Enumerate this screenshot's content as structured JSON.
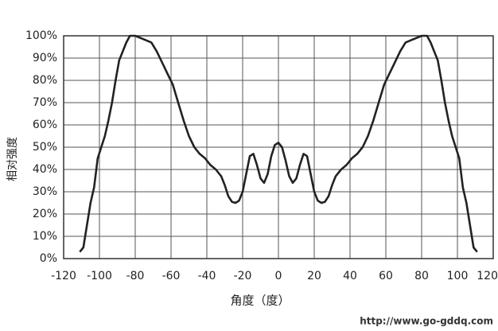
{
  "chart_data": {
    "type": "line",
    "x_label": "角度（度）",
    "y_label": "相对强度",
    "watermark": "http://www.go-gddq.com",
    "xlim": [
      -120,
      120
    ],
    "xticks": [
      -120,
      -100,
      -80,
      -60,
      -40,
      -20,
      0,
      20,
      40,
      60,
      80,
      100,
      120
    ],
    "ylim": [
      0,
      100
    ],
    "yticks": [
      {
        "value": 0,
        "label": "0%"
      },
      {
        "value": 10,
        "label": "10%"
      },
      {
        "value": 20,
        "label": "20%"
      },
      {
        "value": 30,
        "label": "30%"
      },
      {
        "value": 40,
        "label": "40%"
      },
      {
        "value": 50,
        "label": "50%"
      },
      {
        "value": 60,
        "label": "60%"
      },
      {
        "value": 70,
        "label": "70%"
      },
      {
        "value": 80,
        "label": "80%"
      },
      {
        "value": 90,
        "label": "90%"
      },
      {
        "value": 100,
        "label": "100%"
      }
    ],
    "grid": true,
    "color": "#222222",
    "x": [
      -111,
      -109,
      -107,
      -105,
      -103,
      -101,
      -99,
      -97,
      -95,
      -93,
      -91,
      -89,
      -87,
      -85,
      -83,
      -80,
      -77,
      -74,
      -71,
      -68,
      -65,
      -62,
      -59,
      -56,
      -53,
      -50,
      -47,
      -44,
      -41,
      -38,
      -35,
      -32,
      -30,
      -28,
      -26,
      -24,
      -22,
      -20,
      -18,
      -16,
      -14,
      -12,
      -10,
      -8,
      -6,
      -4,
      -2,
      0,
      2,
      4,
      6,
      8,
      10,
      12,
      14,
      16,
      18,
      20,
      22,
      24,
      26,
      28,
      30,
      32,
      35,
      38,
      41,
      44,
      47,
      50,
      53,
      56,
      59,
      62,
      65,
      68,
      71,
      74,
      77,
      80,
      83,
      85,
      87,
      89,
      91,
      93,
      95,
      97,
      99,
      101,
      103,
      105,
      107,
      109,
      111
    ],
    "values": [
      3,
      5,
      15,
      25,
      32,
      45,
      50,
      55,
      62,
      70,
      80,
      89,
      93,
      97,
      100,
      100,
      99,
      98,
      97,
      93,
      88,
      83,
      78,
      70,
      62,
      55,
      50,
      47,
      45,
      42,
      40,
      37,
      33,
      28,
      25.5,
      25,
      26,
      30,
      38,
      46,
      47,
      42,
      36,
      34,
      38,
      46,
      51,
      52,
      50,
      44,
      37,
      34,
      36,
      42,
      47,
      46,
      38,
      30,
      26,
      25,
      25.5,
      28,
      33,
      37,
      40,
      42,
      45,
      47,
      50,
      55,
      62,
      70,
      78,
      83,
      88,
      93,
      97,
      98,
      99,
      100,
      100,
      97,
      93,
      89,
      80,
      70,
      62,
      55,
      50,
      45,
      32,
      25,
      15,
      5,
      3
    ]
  }
}
